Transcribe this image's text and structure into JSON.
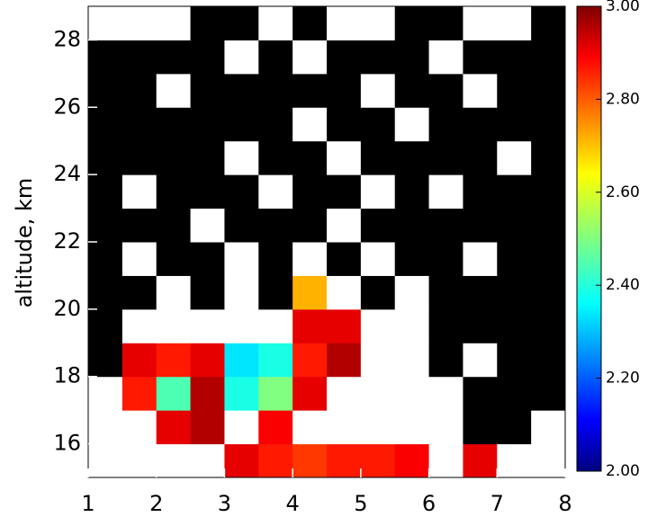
{
  "chart_data": {
    "type": "heatmap",
    "y_label": "altitude, km",
    "xlim": [
      1,
      8
    ],
    "xticks": [
      1,
      2,
      3,
      4,
      5,
      6,
      7,
      8
    ],
    "ylim": [
      15,
      29
    ],
    "yticks": [
      16,
      18,
      20,
      22,
      24,
      26,
      28
    ],
    "x_edges": [
      1,
      1.5,
      2,
      2.5,
      3,
      3.5,
      4,
      4.5,
      5,
      5.5,
      6,
      6.5,
      7,
      7.5,
      8
    ],
    "y_edges": [
      15,
      16,
      17,
      18,
      19,
      20,
      21,
      22,
      23,
      24,
      25,
      26,
      27,
      28,
      29
    ],
    "z": [
      [
        3.2,
        3.2,
        3.2,
        3.2,
        2.9,
        2.85,
        2.82,
        2.85,
        2.85,
        2.88,
        3.2,
        2.9,
        3.2,
        3.2
      ],
      [
        3.2,
        3.2,
        2.9,
        2.95,
        3.2,
        2.88,
        3.2,
        3.2,
        3.2,
        3.2,
        3.2,
        null,
        null,
        3.2
      ],
      [
        3.2,
        2.85,
        2.45,
        2.95,
        2.4,
        2.5,
        2.9,
        3.2,
        3.2,
        3.2,
        3.2,
        null,
        null,
        null
      ],
      [
        null,
        2.9,
        2.85,
        2.9,
        2.35,
        2.4,
        2.85,
        2.95,
        3.2,
        3.2,
        null,
        3.2,
        null,
        null
      ],
      [
        null,
        3.2,
        3.2,
        3.2,
        3.2,
        3.2,
        2.9,
        2.9,
        3.2,
        3.2,
        null,
        null,
        null,
        null
      ],
      [
        null,
        null,
        3.2,
        null,
        3.2,
        null,
        2.7,
        3.2,
        null,
        3.2,
        null,
        null,
        null,
        null
      ],
      [
        null,
        3.2,
        null,
        null,
        3.2,
        null,
        3.2,
        null,
        3.2,
        null,
        null,
        3.2,
        null,
        null
      ],
      [
        null,
        null,
        null,
        3.2,
        null,
        null,
        null,
        3.2,
        null,
        null,
        null,
        null,
        null,
        null
      ],
      [
        null,
        3.2,
        null,
        null,
        null,
        3.2,
        null,
        null,
        3.2,
        null,
        3.2,
        null,
        null,
        null
      ],
      [
        null,
        null,
        null,
        null,
        3.2,
        null,
        null,
        3.2,
        null,
        null,
        null,
        null,
        3.2,
        null
      ],
      [
        null,
        null,
        null,
        null,
        null,
        null,
        3.2,
        null,
        null,
        3.2,
        null,
        null,
        null,
        null
      ],
      [
        null,
        null,
        3.2,
        null,
        null,
        null,
        null,
        null,
        3.2,
        null,
        null,
        3.2,
        null,
        null
      ],
      [
        null,
        null,
        null,
        null,
        3.2,
        null,
        3.2,
        null,
        null,
        null,
        3.2,
        null,
        null,
        null
      ],
      [
        3.2,
        3.2,
        3.2,
        null,
        null,
        3.2,
        null,
        3.2,
        3.2,
        null,
        null,
        3.2,
        3.2,
        null
      ]
    ],
    "missing_color": "#000000",
    "above_color": "#ffffff",
    "zlim": [
      2,
      3
    ],
    "zticks": [
      {
        "value": 2,
        "label": "2.00"
      },
      {
        "value": 2.2,
        "label": "2.20"
      },
      {
        "value": 2.4,
        "label": "2.40"
      },
      {
        "value": 2.6,
        "label": "2.60"
      },
      {
        "value": 2.8,
        "label": "2.80"
      },
      {
        "value": 3,
        "label": "3.00"
      }
    ]
  }
}
